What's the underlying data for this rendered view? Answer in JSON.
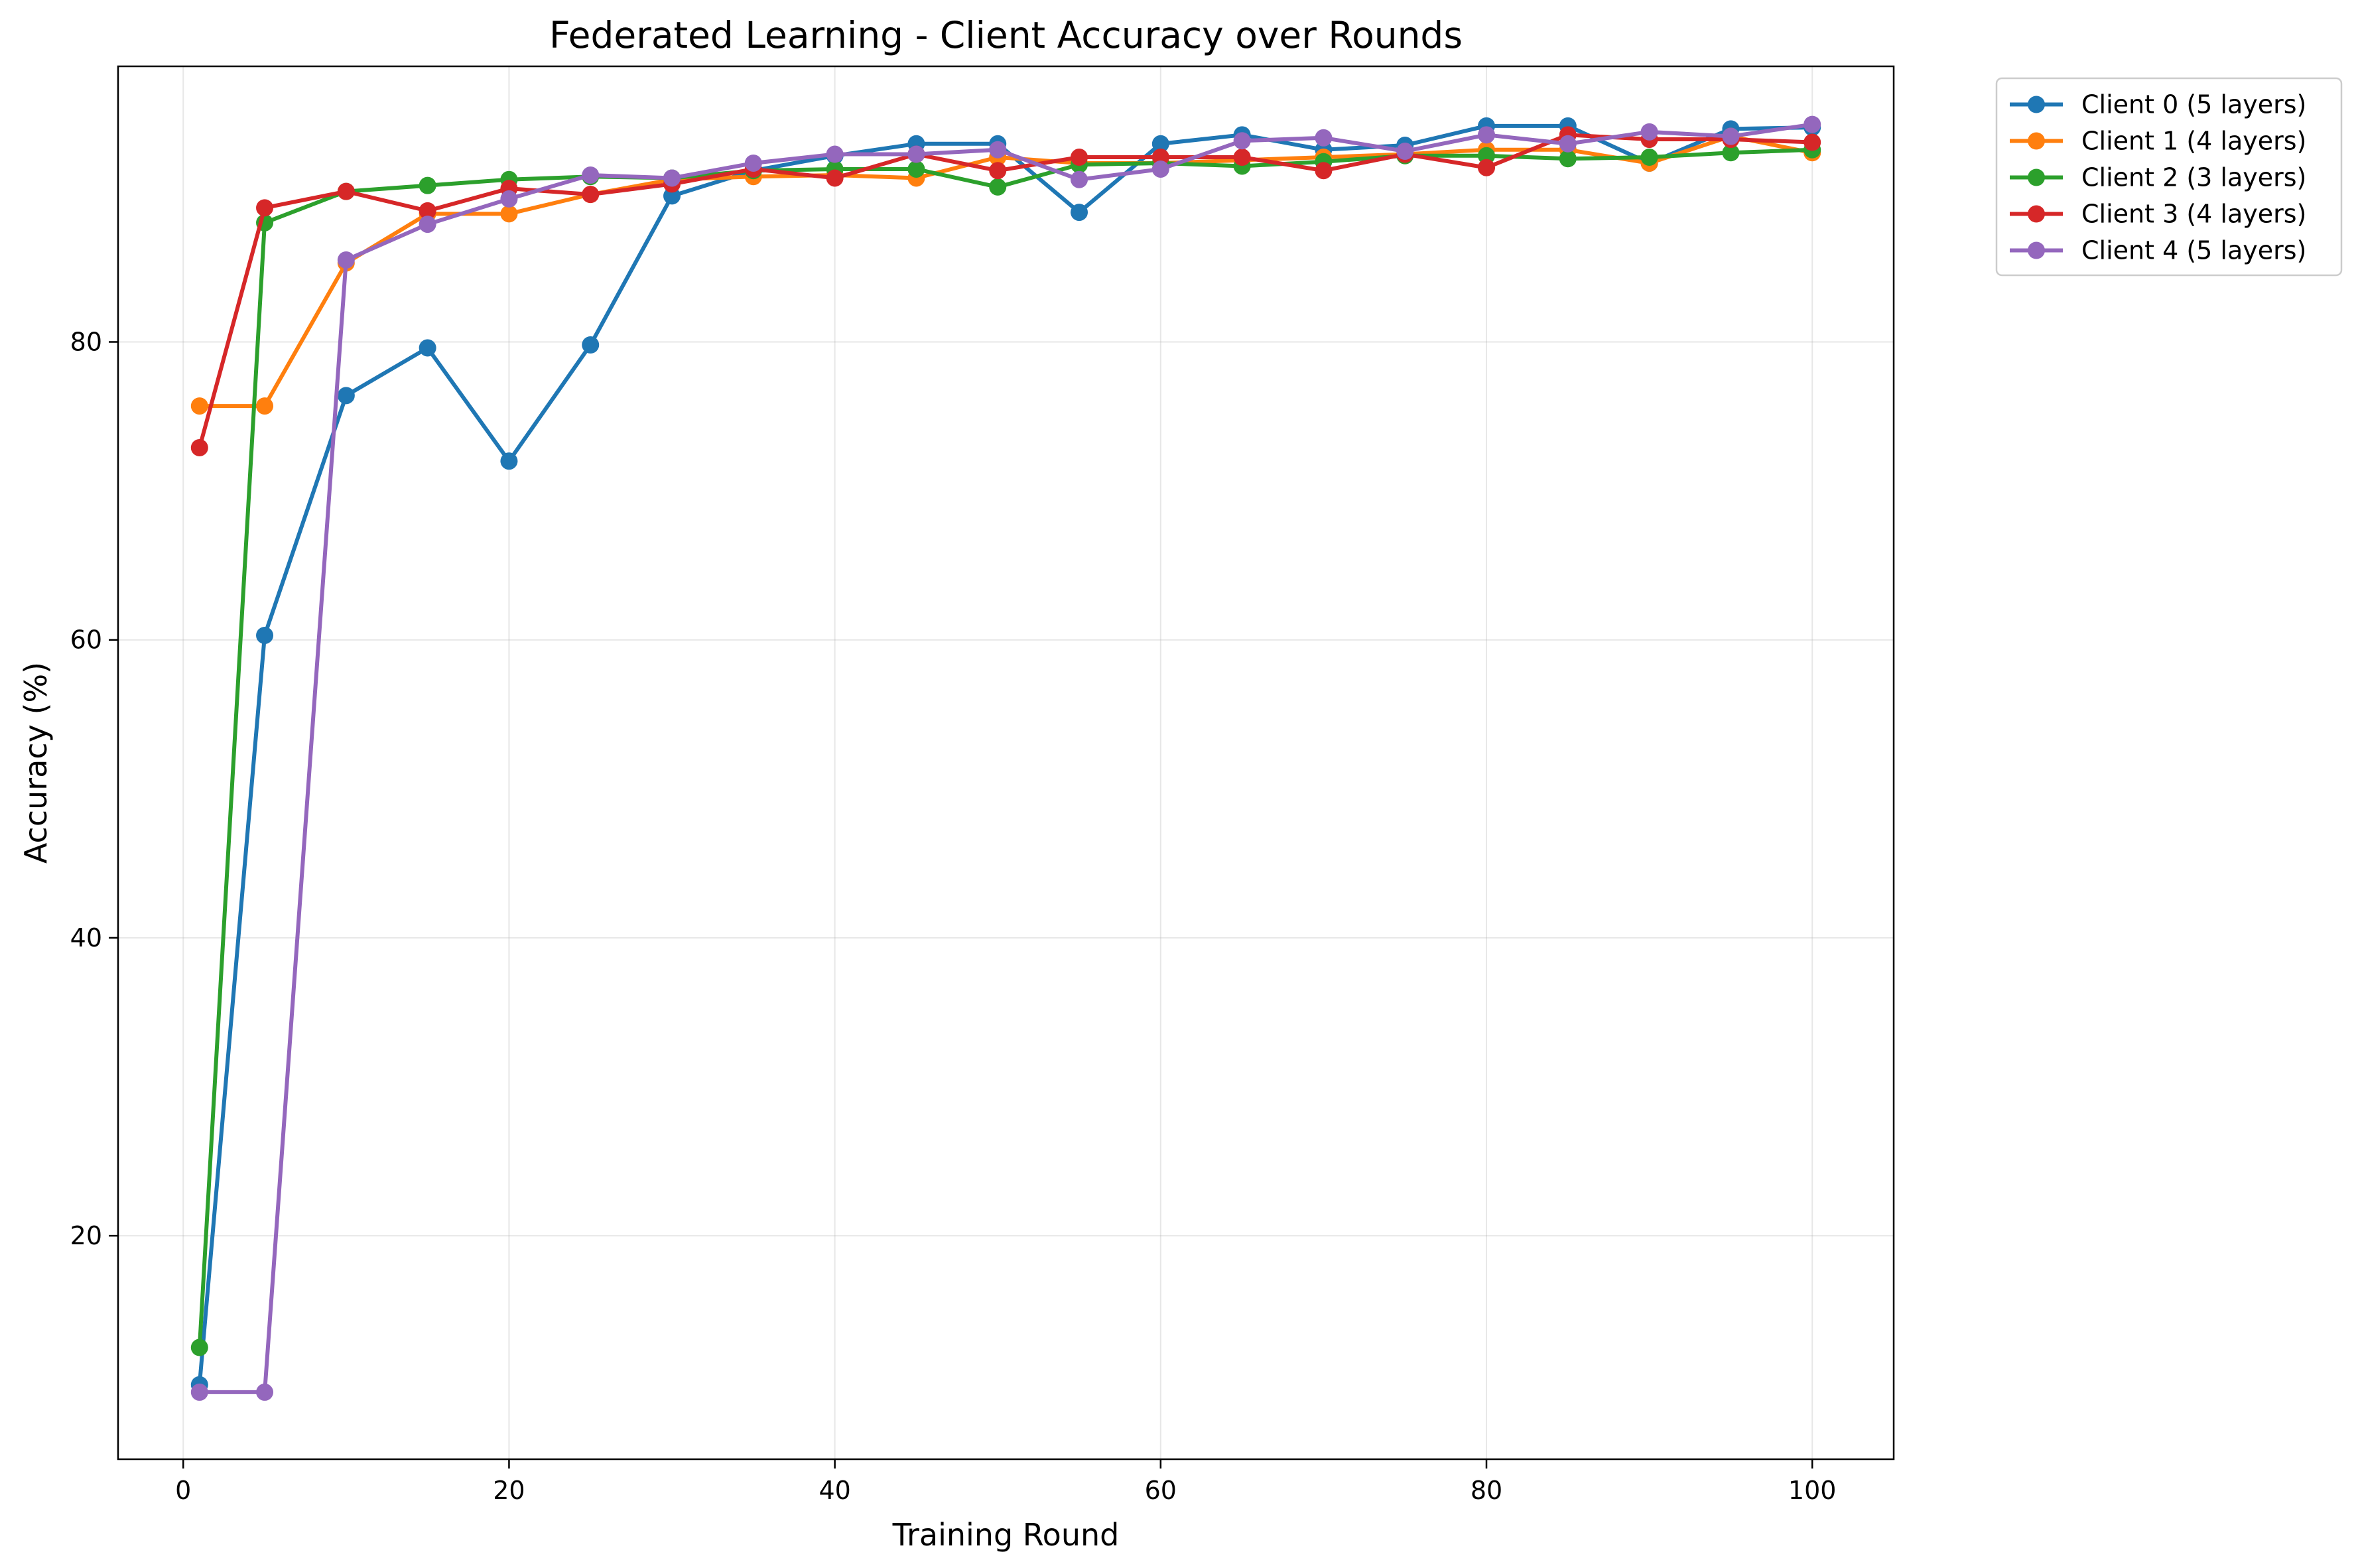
{
  "chart_data": {
    "type": "line",
    "title": "Federated Learning - Client Accuracy over Rounds",
    "xlabel": "Training Round",
    "ylabel": "Accuracy (%)",
    "xlim": [
      -4,
      105
    ],
    "ylim": [
      5,
      98.5
    ],
    "xticks": [
      0,
      20,
      40,
      60,
      80,
      100
    ],
    "yticks": [
      20,
      40,
      60,
      80
    ],
    "grid": true,
    "legend_position": "outside-top-right",
    "x": [
      1,
      5,
      10,
      15,
      20,
      25,
      30,
      35,
      40,
      45,
      50,
      55,
      60,
      65,
      70,
      75,
      80,
      85,
      90,
      95,
      100
    ],
    "series": [
      {
        "name": "Client 0 (5 layers)",
        "color": "#1f77b4",
        "values": [
          10.0,
          60.3,
          76.4,
          79.6,
          72.0,
          79.8,
          89.8,
          91.5,
          92.5,
          93.3,
          93.3,
          88.7,
          93.3,
          93.9,
          92.9,
          93.2,
          94.5,
          94.5,
          92.0,
          94.3,
          94.4
        ]
      },
      {
        "name": "Client 1 (4 layers)",
        "color": "#ff7f0e",
        "values": [
          75.7,
          75.7,
          85.3,
          88.6,
          88.6,
          89.9,
          90.9,
          91.1,
          91.2,
          91.0,
          92.4,
          92.0,
          92.0,
          92.2,
          92.4,
          92.6,
          92.9,
          92.9,
          92.0,
          93.8,
          92.7
        ]
      },
      {
        "name": "Client 2 (3 layers)",
        "color": "#2ca02c",
        "values": [
          12.5,
          88.0,
          90.1,
          90.5,
          90.9,
          91.1,
          91.0,
          91.5,
          91.6,
          91.6,
          90.4,
          91.9,
          92.0,
          91.8,
          92.1,
          92.5,
          92.5,
          92.3,
          92.4,
          92.7,
          92.9
        ]
      },
      {
        "name": "Client 3 (4 layers)",
        "color": "#d62728",
        "values": [
          72.9,
          89.0,
          90.1,
          88.8,
          90.3,
          89.9,
          90.6,
          91.6,
          91.0,
          92.6,
          91.5,
          92.4,
          92.4,
          92.4,
          91.5,
          92.6,
          91.7,
          93.9,
          93.6,
          93.6,
          93.4
        ]
      },
      {
        "name": "Client 4 (5 layers)",
        "color": "#9467bd",
        "values": [
          9.5,
          9.5,
          85.5,
          87.9,
          89.6,
          91.2,
          91.0,
          92.0,
          92.6,
          92.6,
          92.9,
          90.9,
          91.6,
          93.5,
          93.7,
          92.8,
          93.9,
          93.3,
          94.1,
          93.8,
          94.6
        ]
      }
    ]
  }
}
